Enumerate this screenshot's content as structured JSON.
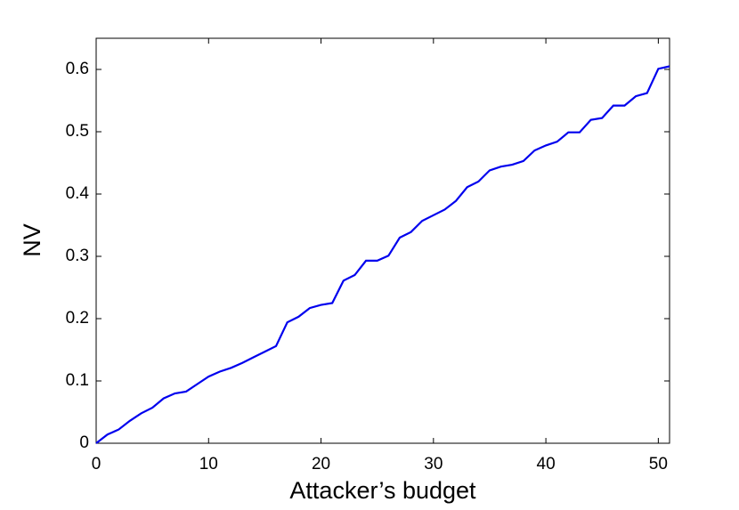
{
  "chart_data": {
    "type": "line",
    "x_label": "Attacker’s budget",
    "y_label": "NV",
    "x": [
      0,
      1,
      2,
      3,
      4,
      5,
      6,
      7,
      8,
      9,
      10,
      11,
      12,
      13,
      14,
      15,
      16,
      17,
      18,
      19,
      20,
      21,
      22,
      23,
      24,
      25,
      26,
      27,
      28,
      29,
      30,
      31,
      32,
      33,
      34,
      35,
      36,
      37,
      38,
      39,
      40,
      41,
      42,
      43,
      44,
      45,
      46,
      47,
      48,
      49,
      50,
      51
    ],
    "series": [
      {
        "color": "#0000ee",
        "values": [
          0,
          0.014,
          0.022,
          0.036,
          0.048,
          0.057,
          0.072,
          0.08,
          0.083,
          0.095,
          0.107,
          0.115,
          0.121,
          0.129,
          0.138,
          0.147,
          0.156,
          0.194,
          0.203,
          0.217,
          0.222,
          0.225,
          0.261,
          0.27,
          0.293,
          0.293,
          0.301,
          0.33,
          0.339,
          0.357,
          0.366,
          0.375,
          0.389,
          0.411,
          0.42,
          0.438,
          0.444,
          0.447,
          0.453,
          0.47,
          0.478,
          0.484,
          0.499,
          0.499,
          0.519,
          0.522,
          0.542,
          0.542,
          0.557,
          0.562,
          0.601,
          0.605
        ]
      }
    ],
    "xlim": [
      0,
      51
    ],
    "ylim": [
      0,
      0.65
    ],
    "xticks": [
      0,
      10,
      20,
      30,
      40,
      50
    ],
    "yticks": [
      0,
      0.1,
      0.2,
      0.3,
      0.4,
      0.5,
      0.6
    ]
  }
}
